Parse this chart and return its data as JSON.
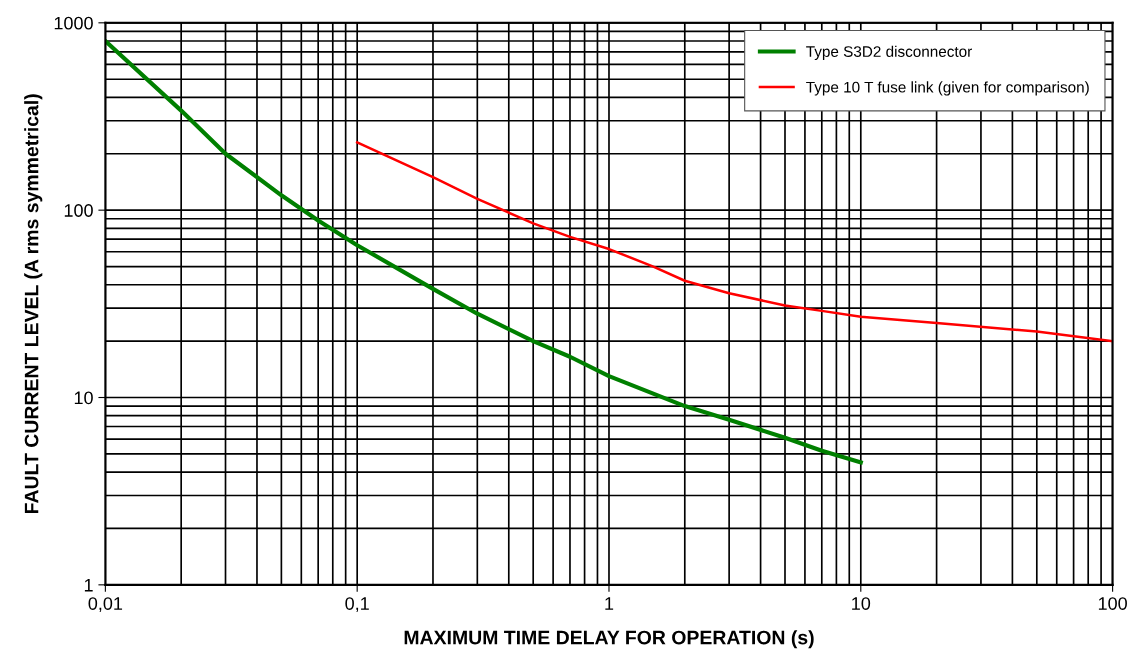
{
  "chart_data": {
    "type": "line",
    "xlabel": "MAXIMUM TIME DELAY FOR OPERATION (s)",
    "ylabel": "FAULT CURRENT LEVEL (A rms symmetrical)",
    "log": "xy",
    "xlim": [
      0.01,
      100
    ],
    "ylim": [
      1,
      1000
    ],
    "xticks": [
      {
        "value": 0.01,
        "label": "0,01"
      },
      {
        "value": 0.1,
        "label": "0,1"
      },
      1,
      10,
      100
    ],
    "yticks": [
      1,
      10,
      100,
      1000
    ],
    "grid": true,
    "legend": "top right",
    "series": [
      {
        "name": "Type S3D2 disconnector",
        "color": "#008000",
        "x": [
          0.01,
          0.02,
          0.03,
          0.05,
          0.07,
          0.1,
          0.2,
          0.3,
          0.5,
          0.7,
          1,
          2,
          3,
          5,
          7,
          10
        ],
        "values": [
          800,
          340,
          200,
          120,
          88,
          65,
          38,
          28,
          20,
          16.5,
          13,
          9,
          7.6,
          6.1,
          5.2,
          4.5
        ]
      },
      {
        "name": "Type 10 T fuse link (given for comparison)",
        "color": "#ff0000",
        "x": [
          0.1,
          0.2,
          0.3,
          0.5,
          0.7,
          1,
          1.5,
          2,
          3,
          5,
          7,
          10,
          20,
          50,
          100
        ],
        "values": [
          230,
          150,
          115,
          85,
          72,
          62,
          50,
          42,
          36,
          31,
          29,
          27,
          25,
          22.5,
          20
        ]
      }
    ]
  }
}
